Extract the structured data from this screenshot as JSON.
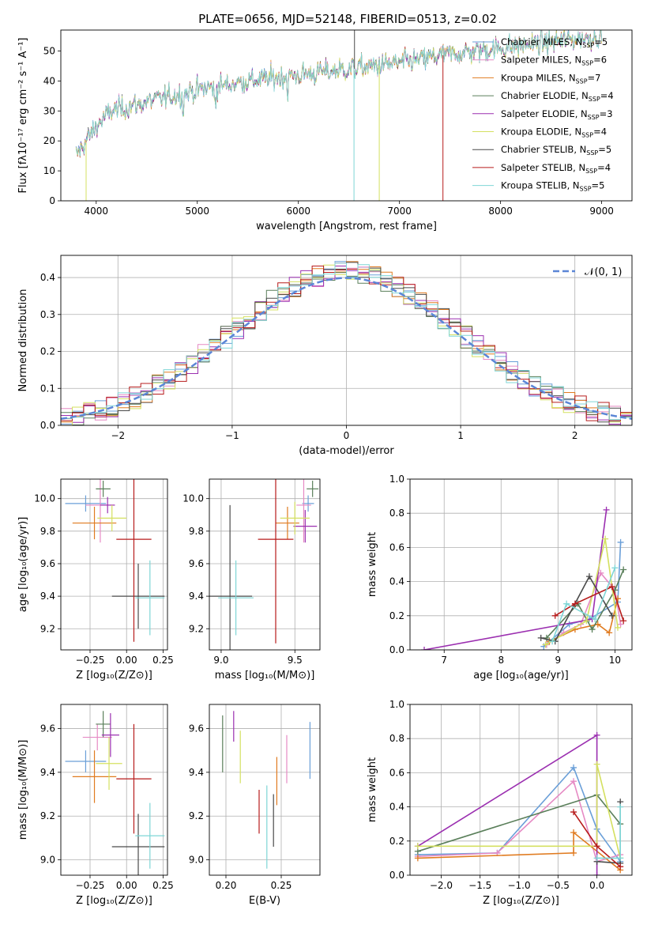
{
  "figure_title": "PLATE=0656, MJD=52148, FIBERID=0513, z=0.02",
  "series_colors": [
    "#6a9fd8",
    "#e68ac4",
    "#e07b20",
    "#5a7f5a",
    "#9b2fb0",
    "#d4e060",
    "#4a4a4a",
    "#b71c1c",
    "#7fd6d6"
  ],
  "chart_data": [
    {
      "id": "spectrum",
      "type": "line",
      "xlabel": "wavelength [Angstrom, rest frame]",
      "ylabel": "Flux [fλ10⁻¹⁷ erg cm⁻² s⁻¹ A⁻¹]",
      "xlim": [
        3650,
        9300
      ],
      "ylim": [
        0,
        57
      ],
      "xticks": [
        "4000",
        "5000",
        "6000",
        "7000",
        "8000",
        "9000"
      ],
      "yticks": [
        "0",
        "10",
        "20",
        "30",
        "40",
        "50"
      ],
      "legend_position": "upper right",
      "legend": [
        {
          "name": "Chabrier MILES, N_SSP=5",
          "model": "Chabrier MILES, N",
          "nssp": "=5"
        },
        {
          "name": "Salpeter MILES, N_SSP=6",
          "model": "Salpeter MILES, N",
          "nssp": "=6"
        },
        {
          "name": "Kroupa MILES, N_SSP=7",
          "model": "Kroupa MILES, N",
          "nssp": "=7"
        },
        {
          "name": "Chabrier ELODIE, N_SSP=4",
          "model": "Chabrier ELODIE, N",
          "nssp": "=4"
        },
        {
          "name": "Salpeter ELODIE, N_SSP=3",
          "model": "Salpeter ELODIE, N",
          "nssp": "=3"
        },
        {
          "name": "Kroupa ELODIE, N_SSP=4",
          "model": "Kroupa ELODIE, N",
          "nssp": "=4"
        },
        {
          "name": "Chabrier STELIB, N_SSP=5",
          "model": "Chabrier STELIB, N",
          "nssp": "=5"
        },
        {
          "name": "Salpeter STELIB, N_SSP=4",
          "model": "Salpeter STELIB, N",
          "nssp": "=4"
        },
        {
          "name": "Kroupa STELIB, N_SSP=5",
          "model": "Kroupa STELIB, N",
          "nssp": "=5"
        }
      ],
      "subscript": "SSP",
      "continuum": [
        [
          3800,
          15
        ],
        [
          3900,
          20
        ],
        [
          4000,
          25
        ],
        [
          4150,
          30
        ],
        [
          4500,
          33
        ],
        [
          5000,
          37
        ],
        [
          5500,
          40
        ],
        [
          6000,
          42
        ],
        [
          6500,
          44
        ],
        [
          7000,
          46
        ],
        [
          7500,
          49
        ],
        [
          8000,
          51
        ],
        [
          8500,
          53
        ],
        [
          9000,
          55
        ]
      ]
    },
    {
      "id": "residuals",
      "type": "histogram",
      "xlabel": "(data-model)/error",
      "ylabel": "Normed distribution",
      "xlim": [
        -2.5,
        2.5
      ],
      "ylim": [
        0,
        0.46
      ],
      "xticks": [
        "−2",
        "−1",
        "0",
        "1",
        "2"
      ],
      "yticks": [
        "0.0",
        "0.1",
        "0.2",
        "0.3",
        "0.4"
      ],
      "reference_curve": "𝒩(0, 1)",
      "bin_width": 0.1
    },
    {
      "id": "age_vs_Z",
      "type": "errorbar",
      "xlabel": "Z [log₁₀(Z/Z⊙)]",
      "ylabel": "age  [log₁₀(age/yr)]",
      "xlim": [
        -0.45,
        0.28
      ],
      "ylim": [
        9.07,
        10.12
      ],
      "xticks": [
        "−0.25",
        "0.00",
        "0.25"
      ],
      "yticks": [
        "9.2",
        "9.4",
        "9.6",
        "9.8",
        "10.0"
      ],
      "points": [
        {
          "x": -0.28,
          "xerr": 0.14,
          "y": 9.97,
          "yerr": 0.05
        },
        {
          "x": -0.18,
          "xerr": 0.1,
          "y": 9.96,
          "yerr": 0.23
        },
        {
          "x": -0.22,
          "xerr": 0.15,
          "y": 9.85,
          "yerr": 0.1
        },
        {
          "x": -0.16,
          "xerr": 0.05,
          "y": 10.06,
          "yerr": 0.05
        },
        {
          "x": -0.13,
          "xerr": 0.05,
          "y": 9.96,
          "yerr": 0.05
        },
        {
          "x": -0.1,
          "xerr": 0.1,
          "y": 9.88,
          "yerr": 0.08
        },
        {
          "x": 0.08,
          "xerr": 0.18,
          "y": 9.4,
          "yerr": 0.2
        },
        {
          "x": 0.05,
          "xerr": 0.12,
          "y": 9.75,
          "yerr": 0.63
        },
        {
          "x": 0.16,
          "xerr": 0.1,
          "y": 9.39,
          "yerr": 0.23
        }
      ]
    },
    {
      "id": "age_vs_mass",
      "type": "errorbar",
      "xlabel": "mass [log₁₀(M/M⊙)]",
      "ylabel": "",
      "xlim": [
        8.92,
        9.67
      ],
      "ylim": [
        9.07,
        10.12
      ],
      "xticks": [
        "9.0",
        "9.5"
      ],
      "yticks": [
        "9.2",
        "9.4",
        "9.6",
        "9.8",
        "10.0"
      ],
      "points": [
        {
          "x": 9.59,
          "xerr": 0.04,
          "y": 9.97,
          "yerr": 0.05
        },
        {
          "x": 9.56,
          "xerr": 0.05,
          "y": 9.96,
          "yerr": 0.23
        },
        {
          "x": 9.45,
          "xerr": 0.08,
          "y": 9.85,
          "yerr": 0.1
        },
        {
          "x": 9.62,
          "xerr": 0.04,
          "y": 10.06,
          "yerr": 0.05
        },
        {
          "x": 9.57,
          "xerr": 0.08,
          "y": 9.83,
          "yerr": 0.1
        },
        {
          "x": 9.5,
          "xerr": 0.1,
          "y": 9.88,
          "yerr": 0.1
        },
        {
          "x": 9.06,
          "xerr": 0.15,
          "y": 9.4,
          "yerr": 0.56
        },
        {
          "x": 9.37,
          "xerr": 0.12,
          "y": 9.75,
          "yerr": 0.64
        },
        {
          "x": 9.1,
          "xerr": 0.12,
          "y": 9.39,
          "yerr": 0.23
        }
      ]
    },
    {
      "id": "mw_vs_age",
      "type": "line",
      "xlabel": "age  [log₁₀(age/yr)]",
      "ylabel": "mass weight",
      "xlim": [
        6.4,
        10.3
      ],
      "ylim": [
        0,
        1
      ],
      "xticks": [
        "7",
        "8",
        "9",
        "10"
      ],
      "yticks": [
        "0.0",
        "0.2",
        "0.4",
        "0.6",
        "0.8",
        "1.0"
      ],
      "series": [
        {
          "x": [
            8.75,
            9.2,
            9.55,
            10.05,
            10.1
          ],
          "y": [
            0.02,
            0.15,
            0.18,
            0.28,
            0.63
          ]
        },
        {
          "x": [
            8.8,
            9.1,
            9.4,
            9.75,
            10.0,
            10.1
          ],
          "y": [
            0.03,
            0.1,
            0.15,
            0.45,
            0.35,
            0.15
          ]
        },
        {
          "x": [
            8.85,
            9.3,
            9.7,
            9.9,
            10.05
          ],
          "y": [
            0.05,
            0.12,
            0.15,
            0.1,
            0.3
          ]
        },
        {
          "x": [
            8.8,
            9.35,
            9.6,
            10.0,
            10.15
          ],
          "y": [
            0.07,
            0.27,
            0.12,
            0.35,
            0.47
          ]
        },
        {
          "x": [
            6.65,
            9.6,
            9.85
          ],
          "y": [
            0.0,
            0.18,
            0.82
          ]
        },
        {
          "x": [
            8.78,
            9.5,
            9.83,
            10.05
          ],
          "y": [
            0.03,
            0.17,
            0.65,
            0.13
          ]
        },
        {
          "x": [
            8.7,
            8.95,
            9.55,
            9.95
          ],
          "y": [
            0.07,
            0.05,
            0.43,
            0.2
          ]
        },
        {
          "x": [
            8.95,
            9.3,
            9.95,
            10.15
          ],
          "y": [
            0.2,
            0.27,
            0.37,
            0.17
          ]
        },
        {
          "x": [
            8.9,
            9.15,
            9.65,
            10.0
          ],
          "y": [
            0.05,
            0.27,
            0.18,
            0.48
          ]
        }
      ]
    },
    {
      "id": "mass_vs_Z",
      "type": "errorbar",
      "xlabel": "Z [log₁₀(Z/Z⊙)]",
      "ylabel": "mass [log₁₀(M/M⊙)]",
      "xlim": [
        -0.45,
        0.28
      ],
      "ylim": [
        8.93,
        9.71
      ],
      "xticks": [
        "−0.25",
        "0.00",
        "0.25"
      ],
      "yticks": [
        "9.0",
        "9.2",
        "9.4",
        "9.6"
      ],
      "points": [
        {
          "x": -0.28,
          "xerr": 0.14,
          "y": 9.45,
          "yerr": 0.05
        },
        {
          "x": -0.2,
          "xerr": 0.1,
          "y": 9.56,
          "yerr": 0.06
        },
        {
          "x": -0.22,
          "xerr": 0.15,
          "y": 9.38,
          "yerr": 0.12
        },
        {
          "x": -0.16,
          "xerr": 0.05,
          "y": 9.62,
          "yerr": 0.06
        },
        {
          "x": -0.11,
          "xerr": 0.06,
          "y": 9.57,
          "yerr": 0.1
        },
        {
          "x": -0.12,
          "xerr": 0.09,
          "y": 9.44,
          "yerr": 0.12
        },
        {
          "x": 0.08,
          "xerr": 0.18,
          "y": 9.06,
          "yerr": 0.15
        },
        {
          "x": 0.05,
          "xerr": 0.12,
          "y": 9.37,
          "yerr": 0.25
        },
        {
          "x": 0.16,
          "xerr": 0.1,
          "y": 9.11,
          "yerr": 0.15
        }
      ]
    },
    {
      "id": "mass_vs_ebv",
      "type": "errorbar",
      "xlabel": "E(B-V)",
      "ylabel": "",
      "xlim": [
        0.185,
        0.285
      ],
      "ylim": [
        8.93,
        9.71
      ],
      "xticks": [
        "0.20",
        "0.25"
      ],
      "yticks": [
        "9.0",
        "9.2",
        "9.4",
        "9.6"
      ],
      "points": [
        {
          "x": 0.276,
          "y": 9.5,
          "yerr": 0.13
        },
        {
          "x": 0.255,
          "y": 9.46,
          "yerr": 0.11
        },
        {
          "x": 0.246,
          "y": 9.36,
          "yerr": 0.11
        },
        {
          "x": 0.197,
          "y": 9.53,
          "yerr": 0.13
        },
        {
          "x": 0.207,
          "y": 9.61,
          "yerr": 0.07
        },
        {
          "x": 0.213,
          "y": 9.47,
          "yerr": 0.12
        },
        {
          "x": 0.243,
          "y": 9.18,
          "yerr": 0.12
        },
        {
          "x": 0.23,
          "y": 9.22,
          "yerr": 0.1
        },
        {
          "x": 0.237,
          "y": 9.15,
          "yerr": 0.19
        }
      ]
    },
    {
      "id": "mw_vs_Z",
      "type": "line",
      "xlabel": "Z [log₁₀(Z/Z⊙)]",
      "ylabel": "mass weight",
      "xlim": [
        -2.4,
        0.45
      ],
      "ylim": [
        0,
        1
      ],
      "xticks": [
        "−2.0",
        "−1.5",
        "−1.0",
        "−0.5",
        "0.0"
      ],
      "yticks": [
        "0.0",
        "0.2",
        "0.4",
        "0.6",
        "0.8",
        "1.0"
      ],
      "series": [
        {
          "x": [
            -2.3,
            -1.28,
            -0.3,
            0.0,
            0.3
          ],
          "y": [
            0.12,
            0.13,
            0.63,
            0.27,
            0.08
          ]
        },
        {
          "x": [
            -2.3,
            -1.28,
            -0.3,
            0.0,
            0.3
          ],
          "y": [
            0.11,
            0.13,
            0.55,
            0.08,
            0.12
          ]
        },
        {
          "x": [
            -2.3,
            -0.3,
            -0.3,
            0.3
          ],
          "y": [
            0.1,
            0.13,
            0.25,
            0.03
          ]
        },
        {
          "x": [
            -2.3,
            0.0,
            0.3
          ],
          "y": [
            0.14,
            0.47,
            0.3
          ]
        },
        {
          "x": [
            -2.3,
            0.0,
            0.0
          ],
          "y": [
            0.17,
            0.82,
            0.0
          ]
        },
        {
          "x": [
            -2.3,
            0.0,
            0.0,
            0.3
          ],
          "y": [
            0.17,
            0.17,
            0.65,
            0.1
          ]
        },
        {
          "x": [
            0.0,
            0.3,
            0.3
          ],
          "y": [
            0.08,
            0.07,
            0.43
          ]
        },
        {
          "x": [
            -0.3,
            0.0,
            0.3
          ],
          "y": [
            0.37,
            0.17,
            0.05
          ]
        },
        {
          "x": [
            0.0,
            0.3,
            0.3
          ],
          "y": [
            0.1,
            0.1,
            0.4
          ]
        }
      ]
    }
  ]
}
